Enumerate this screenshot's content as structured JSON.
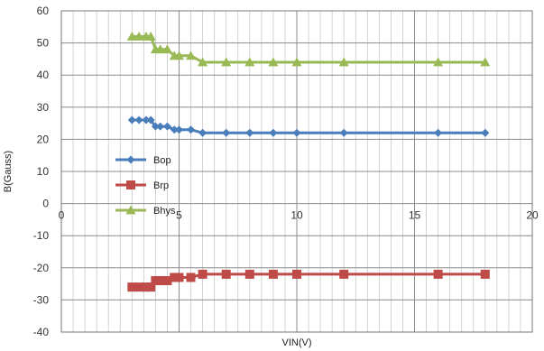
{
  "chart_data": {
    "type": "line",
    "xlabel": "VIN(V)",
    "ylabel": "B(Gauss)",
    "xlim": [
      0,
      20
    ],
    "ylim": [
      -40,
      60
    ],
    "x_ticks": [
      0,
      5,
      10,
      15,
      20
    ],
    "y_ticks": [
      -40,
      -30,
      -20,
      -10,
      0,
      10,
      20,
      30,
      40,
      50,
      60
    ],
    "x_minor_step": 0.5,
    "grid": true,
    "legend_position": "left",
    "series": [
      {
        "name": "Bop",
        "color": "#4a7ebb",
        "marker": "diamond",
        "x": [
          3,
          3.3,
          3.6,
          3.8,
          4.0,
          4.2,
          4.5,
          4.8,
          5.0,
          5.5,
          6,
          7,
          8,
          9,
          10,
          12,
          16,
          18
        ],
        "y": [
          26,
          26,
          26,
          26,
          24,
          24,
          24,
          23,
          23,
          23,
          22,
          22,
          22,
          22,
          22,
          22,
          22,
          22
        ]
      },
      {
        "name": "Brp",
        "color": "#be4b48",
        "marker": "square",
        "x": [
          3,
          3.3,
          3.6,
          3.8,
          4.0,
          4.2,
          4.5,
          4.8,
          5.0,
          5.5,
          6,
          7,
          8,
          9,
          10,
          12,
          16,
          18
        ],
        "y": [
          -26,
          -26,
          -26,
          -26,
          -24,
          -24,
          -24,
          -23,
          -23,
          -23,
          -22,
          -22,
          -22,
          -22,
          -22,
          -22,
          -22,
          -22
        ]
      },
      {
        "name": "Bhys",
        "color": "#98b954",
        "marker": "triangle",
        "x": [
          3,
          3.3,
          3.6,
          3.8,
          4.0,
          4.2,
          4.5,
          4.8,
          5.0,
          5.5,
          6,
          7,
          8,
          9,
          10,
          12,
          16,
          18
        ],
        "y": [
          52,
          52,
          52,
          52,
          48,
          48,
          48,
          46,
          46,
          46,
          44,
          44,
          44,
          44,
          44,
          44,
          44,
          44
        ]
      }
    ]
  }
}
